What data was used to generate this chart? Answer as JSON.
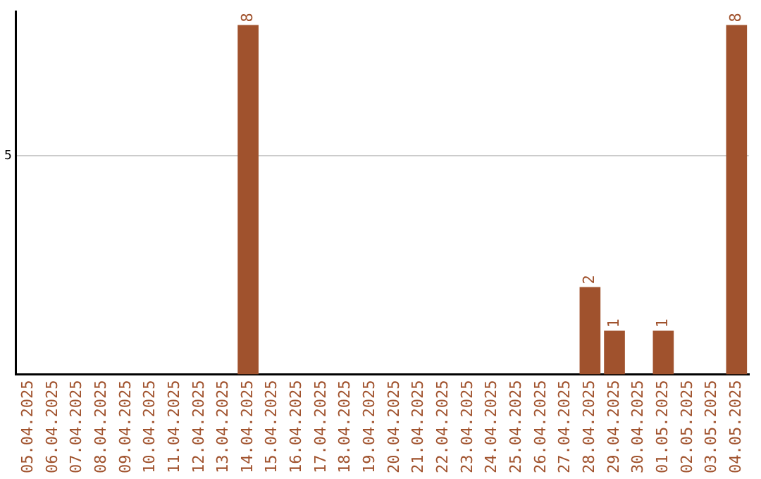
{
  "chart_data": {
    "type": "bar",
    "categories": [
      "05.04.2025",
      "06.04.2025",
      "07.04.2025",
      "08.04.2025",
      "09.04.2025",
      "10.04.2025",
      "11.04.2025",
      "12.04.2025",
      "13.04.2025",
      "14.04.2025",
      "15.04.2025",
      "16.04.2025",
      "17.04.2025",
      "18.04.2025",
      "19.04.2025",
      "20.04.2025",
      "21.04.2025",
      "22.04.2025",
      "23.04.2025",
      "24.04.2025",
      "25.04.2025",
      "26.04.2025",
      "27.04.2025",
      "28.04.2025",
      "29.04.2025",
      "30.04.2025",
      "01.05.2025",
      "02.05.2025",
      "03.05.2025",
      "04.05.2025"
    ],
    "values": [
      0,
      0,
      0,
      0,
      0,
      0,
      0,
      0,
      0,
      8,
      0,
      0,
      0,
      0,
      0,
      0,
      0,
      0,
      0,
      0,
      0,
      0,
      0,
      2,
      1,
      0,
      1,
      0,
      0,
      8
    ],
    "value_labels": [
      null,
      null,
      null,
      null,
      null,
      null,
      null,
      null,
      null,
      "8",
      null,
      null,
      null,
      null,
      null,
      null,
      null,
      null,
      null,
      null,
      null,
      null,
      null,
      "2",
      "1",
      null,
      "1",
      null,
      null,
      "8"
    ],
    "color": "#a0522d",
    "ylim": [
      0,
      8.3
    ],
    "yticks": [
      5
    ],
    "grid": "y",
    "legend": false
  }
}
